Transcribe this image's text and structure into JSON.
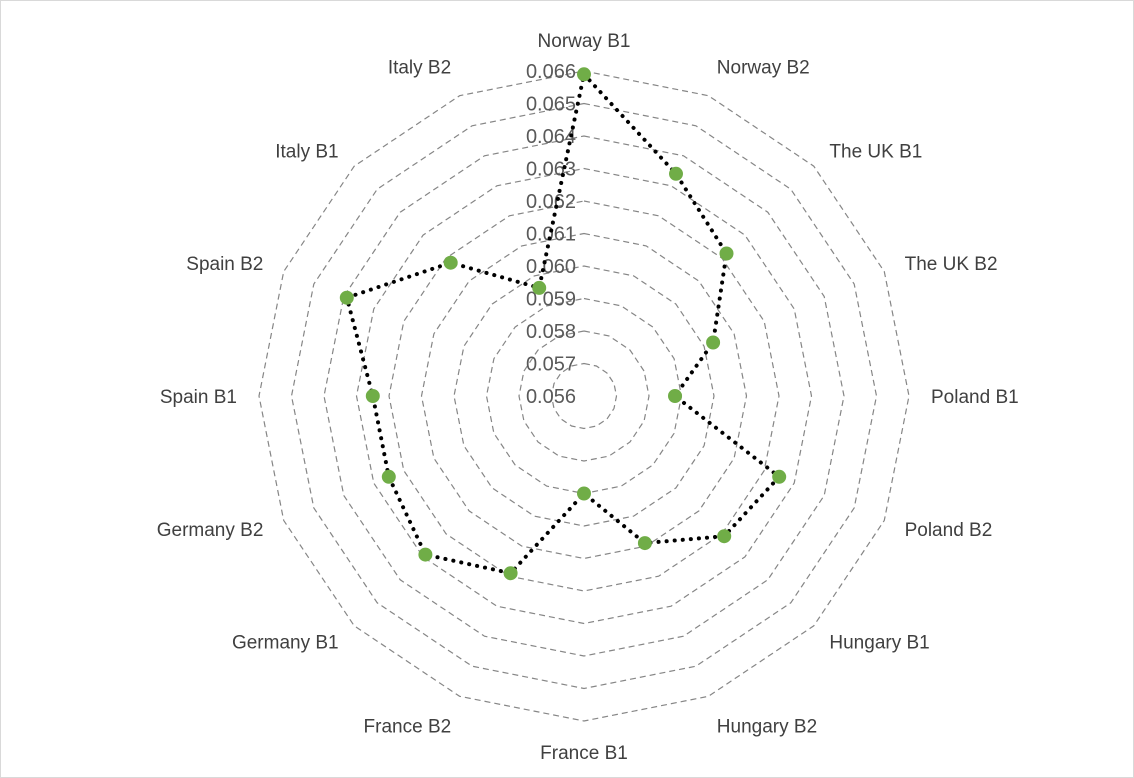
{
  "chart_data": {
    "type": "radar",
    "title": "",
    "categories": [
      "Norway B1",
      "Norway B2",
      "The UK B1",
      "The UK B2",
      "Poland B1",
      "Poland B2",
      "Hungary B1",
      "Hungary B2",
      "France B1",
      "France B2",
      "Germany B1",
      "Germany B2",
      "Spain B1",
      "Spain B2",
      "Italy B1",
      "Italy B2"
    ],
    "radial_ticks": [
      "0.056",
      "0.057",
      "0.058",
      "0.059",
      "0.060",
      "0.061",
      "0.062",
      "0.063",
      "0.064",
      "0.065",
      "0.066"
    ],
    "rlim": [
      0.056,
      0.066
    ],
    "grid": true,
    "series": [
      {
        "color": "#70ad47",
        "line_color": "#000000",
        "line_style": "dotted",
        "values": [
          0.0659,
          0.0634,
          0.0622,
          0.0603,
          0.0588,
          0.0625,
          0.0621,
          0.0609,
          0.059,
          0.0619,
          0.0629,
          0.0625,
          0.0625,
          0.0639,
          0.0618,
          0.0596
        ]
      }
    ]
  }
}
